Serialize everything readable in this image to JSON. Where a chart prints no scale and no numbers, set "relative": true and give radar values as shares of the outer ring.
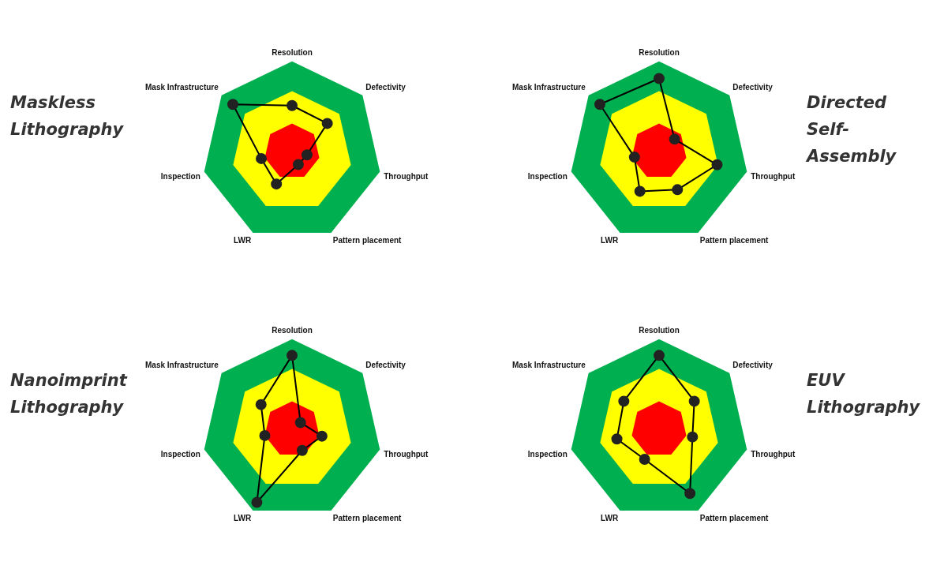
{
  "chart_data": [
    {
      "type": "radar",
      "title": "Maskless Lithography",
      "categories": [
        "Resolution",
        "Defectivity",
        "Throughput",
        "Pattern placement",
        "LWR",
        "Inspection",
        "Mask Infrastructure"
      ],
      "relative": true,
      "marker": "circle",
      "line_style": "solid",
      "grid": false,
      "legend": false,
      "series": [
        {
          "color": "#000000",
          "values": [
            0.51,
            0.5,
            0.17,
            0.16,
            0.4,
            0.35,
            0.84
          ]
        }
      ]
    },
    {
      "type": "radar",
      "title": "Directed Self-Assembly",
      "categories": [
        "Resolution",
        "Defectivity",
        "Throughput",
        "Pattern placement",
        "LWR",
        "Inspection",
        "Mask Infrastructure"
      ],
      "relative": true,
      "marker": "circle",
      "line_style": "solid",
      "grid": false,
      "legend": false,
      "series": [
        {
          "color": "#000000",
          "values": [
            0.81,
            0.22,
            0.66,
            0.47,
            0.49,
            0.28,
            0.84
          ]
        }
      ]
    },
    {
      "type": "radar",
      "title": "Nanoimprint Lithography",
      "categories": [
        "Resolution",
        "Defectivity",
        "Throughput",
        "Pattern placement",
        "LWR",
        "Inspection",
        "Mask Infrastructure"
      ],
      "relative": true,
      "marker": "circle",
      "line_style": "solid",
      "grid": false,
      "legend": false,
      "series": [
        {
          "color": "#000000",
          "values": [
            0.82,
            0.12,
            0.34,
            0.26,
            0.9,
            0.31,
            0.44
          ]
        }
      ]
    },
    {
      "type": "radar",
      "title": "EUV Lithography",
      "categories": [
        "Resolution",
        "Defectivity",
        "Throughput",
        "Pattern placement",
        "LWR",
        "Inspection",
        "Mask Infrastructure"
      ],
      "relative": true,
      "marker": "circle",
      "line_style": "solid",
      "grid": false,
      "legend": false,
      "series": [
        {
          "color": "#000000",
          "values": [
            0.82,
            0.5,
            0.38,
            0.79,
            0.37,
            0.48,
            0.5
          ]
        }
      ]
    }
  ]
}
